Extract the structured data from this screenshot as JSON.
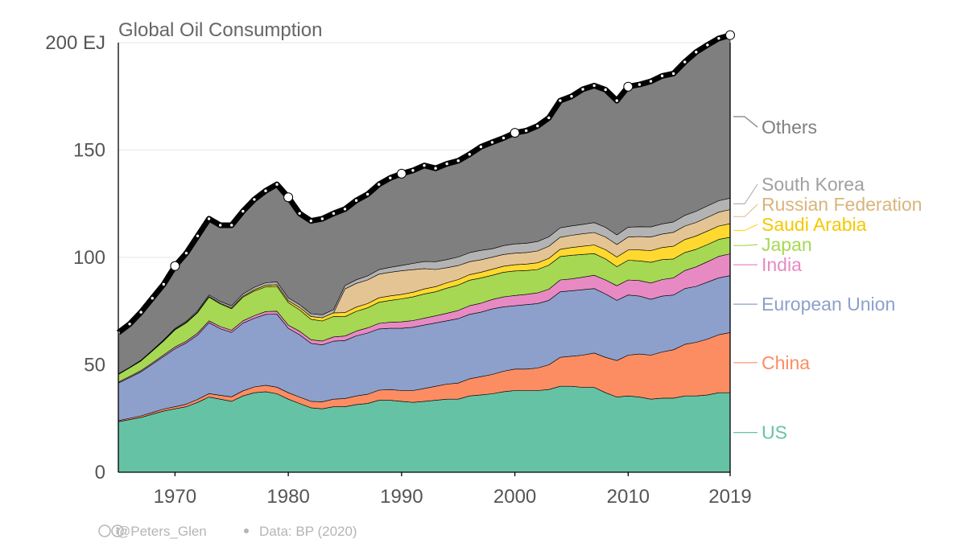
{
  "chart_data": {
    "type": "area",
    "stacked": true,
    "title": "Global Oil Consumption",
    "y_unit": "EJ",
    "ylim": [
      0,
      200
    ],
    "y_ticks": [
      {
        "value": 0,
        "label": "0"
      },
      {
        "value": 50,
        "label": "50"
      },
      {
        "value": 100,
        "label": "100"
      },
      {
        "value": 150,
        "label": "150"
      },
      {
        "value": 200,
        "label": "200 EJ"
      }
    ],
    "xlim": [
      1965,
      2019
    ],
    "x_ticks": [
      {
        "value": 1970,
        "label": "1970"
      },
      {
        "value": 1980,
        "label": "1980"
      },
      {
        "value": 1990,
        "label": "1990"
      },
      {
        "value": 2000,
        "label": "2000"
      },
      {
        "value": 2010,
        "label": "2010"
      },
      {
        "value": 2019,
        "label": "2019"
      }
    ],
    "grid": true,
    "legend_placement": "right",
    "years": [
      1965,
      1966,
      1967,
      1968,
      1969,
      1970,
      1971,
      1972,
      1973,
      1974,
      1975,
      1976,
      1977,
      1978,
      1979,
      1980,
      1981,
      1982,
      1983,
      1984,
      1985,
      1986,
      1987,
      1988,
      1989,
      1990,
      1991,
      1992,
      1993,
      1994,
      1995,
      1996,
      1997,
      1998,
      1999,
      2000,
      2001,
      2002,
      2003,
      2004,
      2005,
      2006,
      2007,
      2008,
      2009,
      2010,
      2011,
      2012,
      2013,
      2014,
      2015,
      2016,
      2017,
      2018,
      2019
    ],
    "series": [
      {
        "name": "US",
        "color": "#66c2a5",
        "values": [
          23.5,
          24.5,
          25.5,
          27,
          28.5,
          29.5,
          30.5,
          32.5,
          35,
          34,
          33,
          35.5,
          37,
          37.5,
          36.5,
          34,
          32,
          30,
          29.5,
          30.5,
          30.5,
          31.5,
          32,
          33.5,
          33.5,
          33,
          32.5,
          33,
          33.5,
          34,
          34,
          35.5,
          36,
          36.5,
          37.5,
          38,
          38,
          38,
          38.5,
          40,
          40,
          39.5,
          39.5,
          37,
          35,
          35.5,
          35,
          34,
          34.5,
          34.5,
          35.5,
          35.5,
          36,
          37,
          37
        ]
      },
      {
        "name": "China",
        "color": "#fc8d62",
        "values": [
          0.5,
          0.6,
          0.7,
          0.8,
          0.9,
          1,
          1.2,
          1.4,
          1.6,
          1.8,
          2.1,
          2.4,
          2.7,
          3,
          3.1,
          3,
          3,
          3,
          3.3,
          3.5,
          3.8,
          4,
          4.3,
          4.7,
          5,
          5,
          5.5,
          6,
          6.5,
          7,
          7.5,
          8,
          8.5,
          9,
          9.5,
          10,
          10,
          10.5,
          11.5,
          13.5,
          14,
          15,
          16,
          16.5,
          17,
          19,
          20,
          20.5,
          21.5,
          22.5,
          24,
          25,
          26,
          27,
          28
        ]
      },
      {
        "name": "European Union",
        "color": "#8da0cb",
        "values": [
          17.5,
          19,
          20.5,
          22.5,
          24.5,
          27,
          28.5,
          30,
          33,
          31,
          30,
          31.5,
          32,
          33,
          34,
          30,
          29,
          27,
          26.5,
          27,
          27,
          28,
          28.5,
          28.5,
          28.5,
          29,
          29.5,
          29.5,
          29.5,
          29.5,
          30,
          30,
          30,
          30.5,
          30,
          29.5,
          30,
          30,
          30,
          30.5,
          30.5,
          30.5,
          30,
          29.5,
          28,
          28,
          27,
          26,
          26,
          25.5,
          26,
          26,
          26.5,
          26.5,
          26.5
        ]
      },
      {
        "name": "India",
        "color": "#e78ac3",
        "values": [
          0.5,
          0.5,
          0.6,
          0.6,
          0.7,
          0.8,
          0.8,
          0.9,
          0.9,
          1,
          1,
          1.1,
          1.2,
          1.3,
          1.4,
          1.5,
          1.6,
          1.7,
          1.8,
          2,
          2.1,
          2.2,
          2.4,
          2.6,
          2.8,
          3,
          3.1,
          3.2,
          3.3,
          3.5,
          3.8,
          4,
          4.2,
          4.4,
          4.6,
          4.8,
          4.8,
          5,
          5.2,
          5.5,
          5.5,
          5.8,
          6.2,
          6.5,
          6.8,
          7,
          7.2,
          7.6,
          7.7,
          8,
          8.4,
          9.1,
          9.5,
          10,
          10.2
        ]
      },
      {
        "name": "Japan",
        "color": "#a6d854",
        "values": [
          3.5,
          4,
          4.5,
          5.5,
          6.5,
          8,
          8.5,
          9.5,
          11,
          10.5,
          10,
          11,
          11.5,
          11.5,
          11.5,
          10.5,
          10,
          9.5,
          9.3,
          9.5,
          9,
          9.2,
          9.3,
          9.8,
          10.2,
          10.7,
          11,
          11.3,
          11.2,
          11.7,
          11.8,
          11.9,
          11.7,
          11.3,
          11.5,
          11.4,
          11.1,
          10.9,
          11.2,
          10.9,
          11,
          10.6,
          10.1,
          9.8,
          8.9,
          9.2,
          9.2,
          9.6,
          9.3,
          8.8,
          8.4,
          8.2,
          8,
          7.9,
          7.7
        ]
      },
      {
        "name": "Saudi Arabia",
        "color": "#ffd92f",
        "values": [
          0.15,
          0.15,
          0.2,
          0.2,
          0.2,
          0.25,
          0.3,
          0.3,
          0.35,
          0.4,
          0.45,
          0.5,
          0.6,
          0.7,
          0.8,
          0.9,
          1.1,
          1.3,
          1.5,
          1.7,
          1.9,
          2,
          2,
          2.1,
          2.1,
          2.1,
          2.2,
          2.3,
          2.4,
          2.5,
          2.6,
          2.6,
          2.7,
          2.8,
          2.8,
          2.9,
          3,
          3.1,
          3.2,
          3.4,
          3.6,
          3.8,
          4,
          4.3,
          4.5,
          4.8,
          5.1,
          5.5,
          5.6,
          5.9,
          6,
          6.2,
          6.3,
          6.2,
          6.3
        ]
      },
      {
        "name": "Russian Federation",
        "color": "#e5c494",
        "values": [
          0,
          0,
          0,
          0,
          0,
          0,
          0,
          0,
          0,
          0,
          0,
          0,
          0,
          0,
          0,
          0,
          0,
          0,
          0,
          0,
          11,
          11,
          11,
          11,
          11,
          11,
          10.5,
          9.5,
          8,
          7,
          6.5,
          6,
          5.8,
          5.6,
          5.5,
          5.4,
          5.4,
          5.5,
          5.6,
          5.6,
          5.7,
          5.8,
          5.8,
          5.9,
          5.8,
          6,
          6.2,
          6.3,
          6.3,
          6.5,
          6.3,
          6.3,
          6.4,
          6.5,
          6.6
        ]
      },
      {
        "name": "South Korea",
        "color": "#b3b3b3",
        "values": [
          0.1,
          0.1,
          0.15,
          0.2,
          0.3,
          0.4,
          0.5,
          0.6,
          0.7,
          0.8,
          0.9,
          1,
          1.1,
          1.2,
          1.3,
          1.3,
          1.3,
          1.3,
          1.4,
          1.5,
          1.6,
          1.7,
          1.9,
          2.1,
          2.3,
          2.5,
          2.9,
          3.3,
          3.6,
          3.8,
          4,
          4.2,
          4.4,
          3.9,
          4.1,
          4.3,
          4.3,
          4.4,
          4.4,
          4.4,
          4.4,
          4.4,
          4.6,
          4.5,
          4.5,
          4.6,
          4.6,
          4.7,
          4.7,
          4.8,
          5,
          5.2,
          5.3,
          5.3,
          5.3
        ]
      },
      {
        "name": "Others",
        "color": "#7f7f7f",
        "values": [
          19.25,
          20.15,
          22.35,
          24.2,
          25.9,
          29.05,
          31.7,
          34.8,
          35.45,
          35.5,
          37.55,
          38.5,
          40.9,
          42.8,
          45.4,
          46.8,
          42.5,
          43.2,
          44.7,
          44.8,
          35.6,
          36.9,
          38,
          39.7,
          41.6,
          42.7,
          43.3,
          44.7,
          43.5,
          44.6,
          44.8,
          45.8,
          48.2,
          49.6,
          50.1,
          51.7,
          52.4,
          53.8,
          55.4,
          59.2,
          60.3,
          62.9,
          63.8,
          64.1,
          62.5,
          65.4,
          66.2,
          67.8,
          68.9,
          69.1,
          71.4,
          74.1,
          74.9,
          75.6,
          75.9
        ]
      }
    ],
    "total_line_color": "#000000",
    "total_markers": [
      1970,
      1980,
      1990,
      2000,
      2010,
      2019
    ]
  },
  "footer": {
    "author": "@Peters_Glen",
    "source": "Data: BP (2020)"
  }
}
